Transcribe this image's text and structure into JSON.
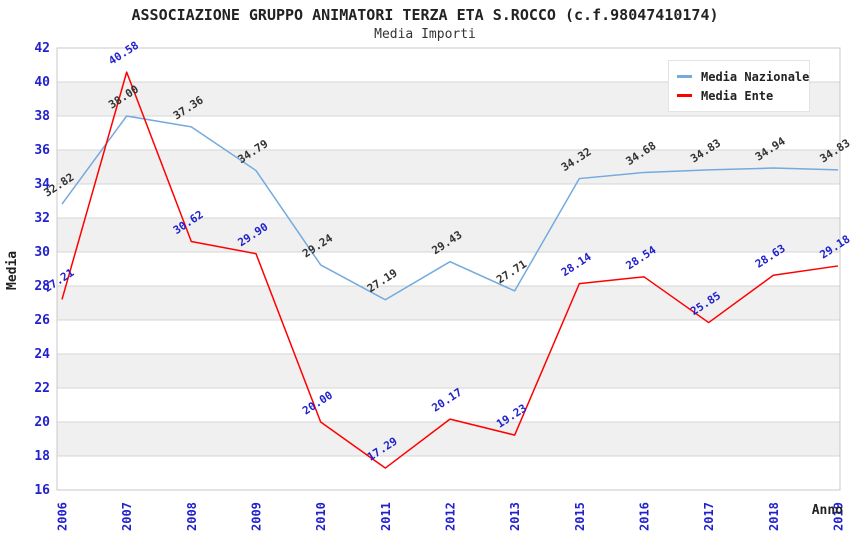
{
  "chart_data": {
    "type": "line",
    "title": "ASSOCIAZIONE GRUPPO ANIMATORI TERZA ETA S.ROCCO (c.f.98047410174)",
    "subtitle": "Media Importi",
    "xlabel": "Anno",
    "ylabel": "Media",
    "ylim": [
      16,
      42
    ],
    "ytick_step": 2,
    "grid": "horizontal-only",
    "alternating_bands": true,
    "legend_position": "top-right",
    "categories": [
      "2006",
      "2007",
      "2008",
      "2009",
      "2010",
      "2011",
      "2012",
      "2013",
      "2015",
      "2016",
      "2017",
      "2018",
      "2019"
    ],
    "series": [
      {
        "name": "Media Nazionale",
        "color": "#74aade",
        "label_color": "#333333",
        "values": [
          32.82,
          38.0,
          37.36,
          34.79,
          29.24,
          27.19,
          29.43,
          27.71,
          34.32,
          34.68,
          34.83,
          34.94,
          34.83
        ]
      },
      {
        "name": "Media Ente",
        "color": "#ff0000",
        "label_color": "#2222cc",
        "values": [
          27.21,
          40.58,
          30.62,
          29.9,
          20.0,
          17.29,
          20.17,
          19.23,
          28.14,
          28.54,
          25.85,
          28.63,
          29.18
        ]
      }
    ]
  },
  "colors": {
    "axis_text": "#2222cc",
    "heading_text": "#222222",
    "band": "#f0f0f0",
    "gridline": "#d6d6d6",
    "plot_border": "#c9c9c9",
    "background": "#ffffff"
  }
}
